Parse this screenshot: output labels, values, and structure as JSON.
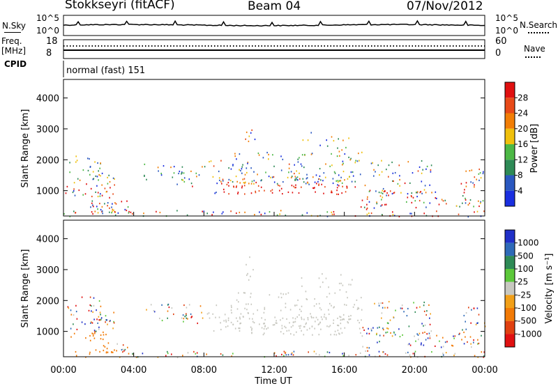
{
  "header": {
    "station": "Stokkseyri (fitACF)",
    "beam": "Beam 04",
    "date": "07/Nov/2012"
  },
  "noise_panel": {
    "left_label": "N.Sky",
    "right_label": "N.Search",
    "ticks_left": [
      "10^5",
      "10^0"
    ],
    "ticks_right": [
      "10^5",
      "10^0"
    ]
  },
  "freq_panel": {
    "left_label_1": "Freq.",
    "left_label_2": "[MHz]",
    "right_label": "Nave",
    "ticks_left": [
      "18",
      "8"
    ],
    "ticks_right": [
      "60",
      "0"
    ]
  },
  "cpid": {
    "label": "CPID",
    "value": "normal (fast) 151"
  },
  "colors": {
    "power_scale": [
      "#1a2fe0",
      "#2a58c0",
      "#2e8a56",
      "#4cb845",
      "#f0c00c",
      "#f27e06",
      "#e84a18",
      "#e01010"
    ],
    "velocity_scale": [
      "#2030c8",
      "#2e6ab8",
      "#2e8a56",
      "#5cc83a",
      "#c8c8c0",
      "#f2a018",
      "#f27a06",
      "#e04010",
      "#e01010"
    ]
  },
  "chart_data": [
    {
      "type": "heatmap",
      "name": "power",
      "ylabel": "Slant Range [km]",
      "yticks": [
        1000,
        2000,
        3000,
        4000
      ],
      "ylim": [
        180,
        4600
      ],
      "xlim": [
        0,
        24
      ],
      "colorbar": {
        "label": "Power [dB]",
        "ticks": [
          "4",
          "8",
          "12",
          "16",
          "20",
          "24",
          "28"
        ],
        "range": [
          0,
          32
        ]
      }
    },
    {
      "type": "heatmap",
      "name": "velocity",
      "ylabel": "Slant Range [km]",
      "yticks": [
        1000,
        2000,
        3000,
        4000
      ],
      "ylim": [
        180,
        4600
      ],
      "xlim": [
        0,
        24
      ],
      "colorbar": {
        "label": "Velocity [m s⁻¹]",
        "ticks": [
          "1000",
          "500",
          "100",
          "25",
          "-25",
          "-100",
          "-500",
          "-1000"
        ]
      },
      "xlabel": "Time UT",
      "xticks": [
        "00:00",
        "04:00",
        "08:00",
        "12:00",
        "16:00",
        "20:00",
        "00:00"
      ]
    }
  ]
}
